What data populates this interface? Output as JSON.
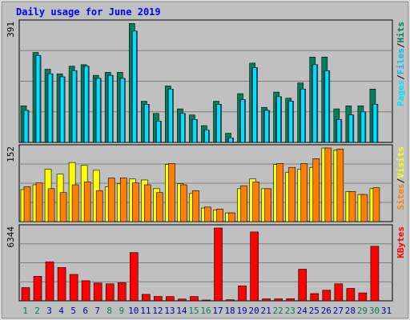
{
  "title": "Daily usage for June 2019",
  "colors": {
    "hits": "#00805c",
    "files": "#00c0ff",
    "pages": "#00e0ff",
    "sites": "#ff8000",
    "visits": "#ffff00",
    "kbytes": "#ff0000",
    "title": "#0000ff",
    "plot_bg": "#c0c0c0",
    "frame_bg": "#d7d7d7",
    "weekend_day": "#00805c",
    "weekday": "#0000aa"
  },
  "chart_data": [
    {
      "type": "bar",
      "name": "hits-files-pages",
      "title": "Daily usage for June 2019",
      "ylim": [
        0,
        391
      ],
      "ymax_label": "391",
      "legend": [
        "Pages",
        "Files",
        "Hits"
      ],
      "legend_separator": "/",
      "legend_placement": "right",
      "categories": [
        "1",
        "2",
        "3",
        "4",
        "5",
        "6",
        "7",
        "8",
        "9",
        "10",
        "11",
        "12",
        "13",
        "14",
        "15",
        "16",
        "17",
        "18",
        "19",
        "20",
        "21",
        "22",
        "23",
        "24",
        "25",
        "26",
        "27",
        "28",
        "29",
        "30",
        "31"
      ],
      "series": [
        {
          "name": "Hits",
          "values": [
            120,
            295,
            240,
            225,
            250,
            255,
            220,
            230,
            230,
            390,
            135,
            95,
            185,
            110,
            90,
            55,
            135,
            30,
            160,
            260,
            115,
            165,
            145,
            195,
            280,
            280,
            110,
            120,
            120,
            175,
            0
          ]
        },
        {
          "name": "Files",
          "values": [
            105,
            285,
            225,
            215,
            235,
            250,
            210,
            220,
            210,
            365,
            125,
            70,
            175,
            95,
            75,
            40,
            125,
            15,
            140,
            245,
            105,
            150,
            135,
            175,
            255,
            235,
            75,
            90,
            100,
            125,
            0
          ]
        },
        {
          "name": "Pages",
          "values": [
            105,
            285,
            225,
            215,
            235,
            250,
            210,
            220,
            210,
            365,
            125,
            70,
            175,
            95,
            75,
            40,
            125,
            15,
            140,
            245,
            105,
            150,
            135,
            175,
            255,
            235,
            75,
            90,
            100,
            125,
            0
          ]
        }
      ]
    },
    {
      "type": "bar",
      "name": "visits-sites",
      "ylim": [
        0,
        152
      ],
      "ymax_label": "152",
      "legend": [
        "Sites",
        "Visits"
      ],
      "legend_separator": "/",
      "legend_placement": "right",
      "categories": [
        "1",
        "2",
        "3",
        "4",
        "5",
        "6",
        "7",
        "8",
        "9",
        "10",
        "11",
        "12",
        "13",
        "14",
        "15",
        "16",
        "17",
        "18",
        "19",
        "20",
        "21",
        "22",
        "23",
        "24",
        "25",
        "26",
        "27",
        "28",
        "29",
        "30",
        "31"
      ],
      "series": [
        {
          "name": "Visits",
          "values": [
            66,
            76,
            108,
            98,
            122,
            116,
            106,
            72,
            78,
            88,
            86,
            68,
            118,
            78,
            58,
            28,
            24,
            18,
            68,
            88,
            68,
            118,
            102,
            108,
            112,
            152,
            148,
            62,
            56,
            68,
            0
          ]
        },
        {
          "name": "Sites",
          "values": [
            72,
            80,
            68,
            60,
            76,
            82,
            64,
            90,
            90,
            80,
            76,
            60,
            120,
            76,
            64,
            30,
            26,
            18,
            74,
            82,
            68,
            120,
            112,
            120,
            130,
            152,
            150,
            62,
            56,
            70,
            0
          ]
        }
      ]
    },
    {
      "type": "bar",
      "name": "kbytes",
      "ylim": [
        0,
        6344
      ],
      "ymax_label": "6344",
      "legend": [
        "KBytes"
      ],
      "legend_placement": "right",
      "categories": [
        "1",
        "2",
        "3",
        "4",
        "5",
        "6",
        "7",
        "8",
        "9",
        "10",
        "11",
        "12",
        "13",
        "14",
        "15",
        "16",
        "17",
        "18",
        "19",
        "20",
        "21",
        "22",
        "23",
        "24",
        "25",
        "26",
        "27",
        "28",
        "29",
        "30",
        "31"
      ],
      "series": [
        {
          "name": "KBytes",
          "values": [
            1150,
            2140,
            3400,
            2900,
            2300,
            1750,
            1550,
            1480,
            1580,
            4200,
            560,
            380,
            370,
            150,
            370,
            70,
            6344,
            90,
            1300,
            6000,
            170,
            170,
            180,
            2750,
            630,
            920,
            1480,
            1080,
            690,
            4750,
            0
          ]
        }
      ]
    }
  ],
  "weekend_days": [
    1,
    2,
    8,
    9,
    15,
    16,
    22,
    23,
    29,
    30
  ]
}
